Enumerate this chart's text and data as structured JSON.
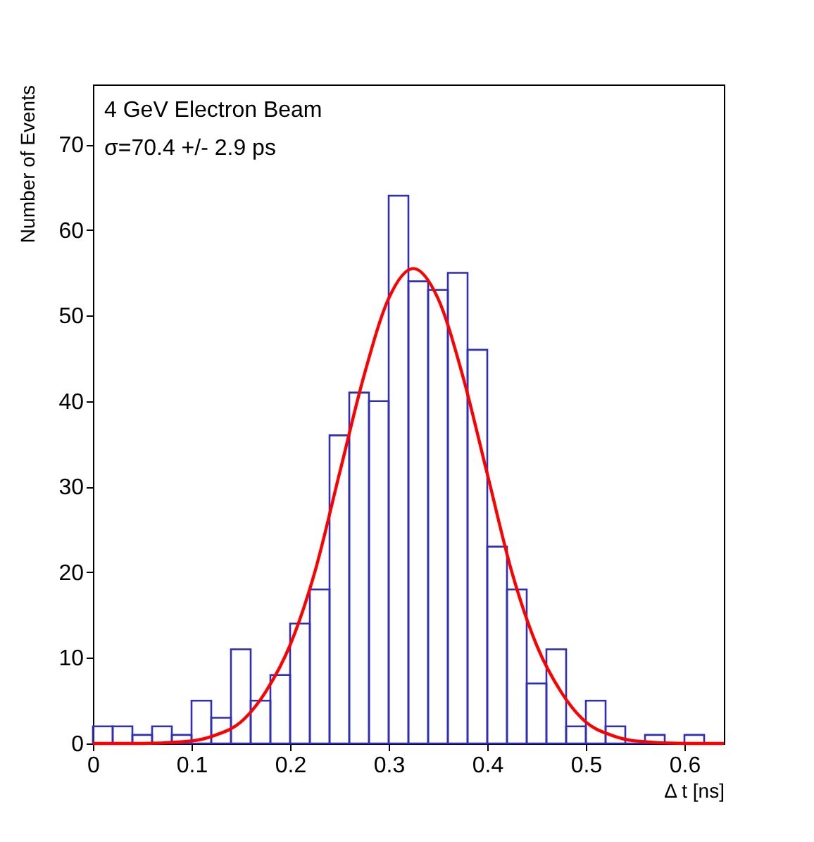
{
  "chart_data": {
    "type": "histogram",
    "xlabel": "Δ t [ns]",
    "ylabel": "Number of Events",
    "annotations": [
      "4 GeV Electron Beam",
      "σ=70.4 +/- 2.9 ps"
    ],
    "bins": [
      0,
      0.02,
      0.04,
      0.06,
      0.08,
      0.1,
      0.12,
      0.14,
      0.16,
      0.18,
      0.2,
      0.22,
      0.24,
      0.26,
      0.28,
      0.3,
      0.32,
      0.34,
      0.36,
      0.38,
      0.4,
      0.42,
      0.44,
      0.46,
      0.48,
      0.5,
      0.52,
      0.54,
      0.56,
      0.58,
      0.6,
      0.62,
      0.64
    ],
    "values": [
      2,
      2,
      1,
      2,
      1,
      5,
      3,
      11,
      5,
      8,
      14,
      18,
      36,
      41,
      40,
      64,
      54,
      53,
      55,
      46,
      23,
      18,
      7,
      11,
      2,
      5,
      2,
      0,
      1,
      0,
      1,
      0
    ],
    "color": "#2e2eb8",
    "series": [
      {
        "type": "line",
        "color": "#ff0000",
        "x": [
          0,
          0.05,
          0.1,
          0.125,
          0.15,
          0.175,
          0.2,
          0.225,
          0.25,
          0.275,
          0.3,
          0.325,
          0.35,
          0.375,
          0.4,
          0.425,
          0.45,
          0.475,
          0.5,
          0.525,
          0.55,
          0.6,
          0.64
        ],
        "values": [
          0,
          0,
          0.3,
          1,
          2.5,
          6,
          11.5,
          20,
          31.5,
          43,
          52,
          55.5,
          52,
          43,
          31.5,
          20,
          11.5,
          6,
          2.5,
          1,
          0.3,
          0,
          0
        ]
      }
    ],
    "xlim": [
      0,
      0.64
    ],
    "ylim": [
      0,
      77
    ],
    "xticks": [
      0,
      0.1,
      0.2,
      0.3,
      0.4,
      0.5,
      0.6
    ],
    "yticks": [
      0,
      10,
      20,
      30,
      40,
      50,
      60,
      70
    ],
    "grid": false
  }
}
